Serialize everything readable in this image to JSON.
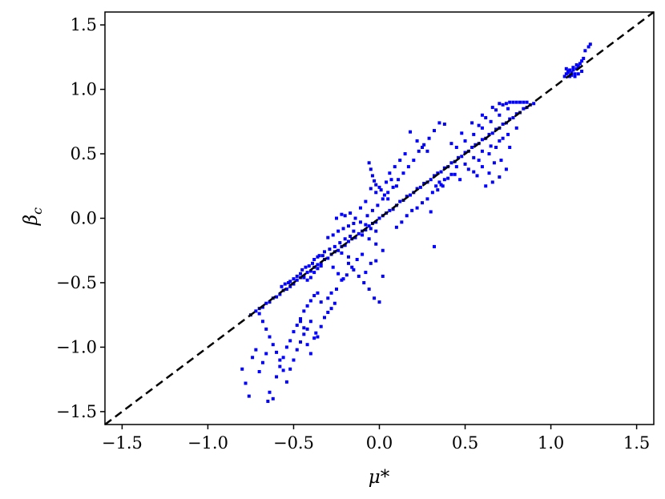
{
  "chart_data": {
    "type": "scatter",
    "title": "",
    "xlabel": "μ*",
    "ylabel": "β_c",
    "xlim": [
      -1.6,
      1.6
    ],
    "ylim": [
      -1.6,
      1.6
    ],
    "xticks": [
      "−1.5",
      "−1.0",
      "−0.5",
      "0.0",
      "0.5",
      "1.0",
      "1.5"
    ],
    "yticks": [
      "−1.5",
      "−1.0",
      "−0.5",
      "0.0",
      "0.5",
      "1.0",
      "1.5"
    ],
    "grid": false,
    "legend": "none",
    "point_color": "#0000ff",
    "reference_line": {
      "style": "dashed",
      "color": "#000000",
      "from": [
        -1.6,
        -1.6
      ],
      "to": [
        1.6,
        1.6
      ]
    },
    "points": [
      [
        -0.75,
        -0.75
      ],
      [
        -0.72,
        -0.72
      ],
      [
        -0.7,
        -0.7
      ],
      [
        -0.68,
        -0.69
      ],
      [
        -0.66,
        -0.66
      ],
      [
        -0.64,
        -0.65
      ],
      [
        -0.62,
        -0.62
      ],
      [
        -0.6,
        -0.61
      ],
      [
        -0.58,
        -0.59
      ],
      [
        -0.56,
        -0.56
      ],
      [
        -0.54,
        -0.55
      ],
      [
        -0.52,
        -0.53
      ],
      [
        -0.5,
        -0.51
      ],
      [
        -0.48,
        -0.48
      ],
      [
        -0.46,
        -0.46
      ],
      [
        -0.44,
        -0.45
      ],
      [
        -0.42,
        -0.42
      ],
      [
        -0.4,
        -0.41
      ],
      [
        -0.38,
        -0.38
      ],
      [
        -0.36,
        -0.36
      ],
      [
        -0.34,
        -0.35
      ],
      [
        -0.32,
        -0.32
      ],
      [
        -0.3,
        -0.31
      ],
      [
        -0.28,
        -0.28
      ],
      [
        -0.26,
        -0.26
      ],
      [
        -0.24,
        -0.25
      ],
      [
        -0.22,
        -0.22
      ],
      [
        -0.2,
        -0.21
      ],
      [
        -0.18,
        -0.18
      ],
      [
        -0.16,
        -0.16
      ],
      [
        -0.14,
        -0.15
      ],
      [
        -0.12,
        -0.12
      ],
      [
        -0.1,
        -0.1
      ],
      [
        -0.08,
        -0.09
      ],
      [
        -0.06,
        -0.06
      ],
      [
        -0.04,
        -0.04
      ],
      [
        -0.02,
        -0.03
      ],
      [
        0.0,
        0.0
      ],
      [
        0.02,
        0.02
      ],
      [
        0.04,
        0.04
      ],
      [
        -0.52,
        -0.49
      ],
      [
        -0.5,
        -0.47
      ],
      [
        -0.48,
        -0.45
      ],
      [
        -0.46,
        -0.43
      ],
      [
        -0.44,
        -0.46
      ],
      [
        -0.42,
        -0.48
      ],
      [
        -0.4,
        -0.46
      ],
      [
        -0.38,
        -0.42
      ],
      [
        -0.36,
        -0.39
      ],
      [
        -0.34,
        -0.37
      ],
      [
        -0.57,
        -0.53
      ],
      [
        -0.55,
        -0.51
      ],
      [
        -0.53,
        -0.5
      ],
      [
        -0.45,
        -0.4
      ],
      [
        -0.43,
        -0.38
      ],
      [
        -0.41,
        -0.37
      ],
      [
        0.06,
        0.06
      ],
      [
        0.08,
        0.07
      ],
      [
        0.1,
        0.1
      ],
      [
        0.12,
        0.13
      ],
      [
        0.14,
        0.14
      ],
      [
        0.16,
        0.17
      ],
      [
        0.18,
        0.18
      ],
      [
        0.2,
        0.2
      ],
      [
        0.22,
        0.23
      ],
      [
        0.24,
        0.24
      ],
      [
        0.26,
        0.27
      ],
      [
        0.28,
        0.28
      ],
      [
        0.3,
        0.3
      ],
      [
        0.32,
        0.33
      ],
      [
        0.34,
        0.35
      ],
      [
        0.36,
        0.36
      ],
      [
        0.38,
        0.39
      ],
      [
        0.4,
        0.4
      ],
      [
        0.42,
        0.43
      ],
      [
        0.44,
        0.44
      ],
      [
        0.46,
        0.47
      ],
      [
        0.48,
        0.48
      ],
      [
        0.5,
        0.51
      ],
      [
        0.52,
        0.52
      ],
      [
        0.54,
        0.55
      ],
      [
        0.56,
        0.57
      ],
      [
        0.58,
        0.58
      ],
      [
        0.6,
        0.61
      ],
      [
        0.62,
        0.62
      ],
      [
        0.64,
        0.65
      ],
      [
        0.66,
        0.66
      ],
      [
        0.68,
        0.69
      ],
      [
        0.7,
        0.7
      ],
      [
        0.72,
        0.73
      ],
      [
        0.74,
        0.74
      ],
      [
        0.76,
        0.77
      ],
      [
        0.78,
        0.78
      ],
      [
        0.8,
        0.81
      ],
      [
        0.82,
        0.82
      ],
      [
        0.84,
        0.85
      ],
      [
        0.86,
        0.86
      ],
      [
        0.88,
        0.88
      ],
      [
        0.9,
        0.89
      ],
      [
        0.45,
        0.55
      ],
      [
        0.5,
        0.6
      ],
      [
        0.55,
        0.65
      ],
      [
        0.6,
        0.7
      ],
      [
        0.65,
        0.75
      ],
      [
        0.7,
        0.8
      ],
      [
        0.75,
        0.85
      ],
      [
        0.58,
        0.72
      ],
      [
        0.62,
        0.78
      ],
      [
        0.68,
        0.84
      ],
      [
        0.72,
        0.88
      ],
      [
        0.66,
        0.86
      ],
      [
        0.6,
        0.8
      ],
      [
        0.54,
        0.74
      ],
      [
        0.48,
        0.66
      ],
      [
        0.42,
        0.58
      ],
      [
        0.78,
        0.9
      ],
      [
        0.8,
        0.9
      ],
      [
        0.82,
        0.9
      ],
      [
        0.84,
        0.9
      ],
      [
        0.86,
        0.9
      ],
      [
        0.76,
        0.9
      ],
      [
        0.74,
        0.89
      ],
      [
        0.7,
        0.89
      ],
      [
        0.45,
        0.4
      ],
      [
        0.5,
        0.42
      ],
      [
        0.55,
        0.47
      ],
      [
        0.6,
        0.52
      ],
      [
        0.65,
        0.56
      ],
      [
        0.7,
        0.6
      ],
      [
        0.75,
        0.65
      ],
      [
        0.8,
        0.7
      ],
      [
        0.52,
        0.38
      ],
      [
        0.58,
        0.45
      ],
      [
        0.64,
        0.5
      ],
      [
        0.68,
        0.55
      ],
      [
        0.72,
        0.62
      ],
      [
        0.35,
        0.28
      ],
      [
        0.38,
        0.3
      ],
      [
        0.42,
        0.34
      ],
      [
        0.74,
        0.38
      ],
      [
        0.7,
        0.32
      ],
      [
        0.66,
        0.28
      ],
      [
        0.62,
        0.25
      ],
      [
        0.67,
        0.43
      ],
      [
        0.64,
        0.35
      ],
      [
        0.71,
        0.45
      ],
      [
        0.76,
        0.55
      ],
      [
        0.57,
        0.33
      ],
      [
        0.55,
        0.36
      ],
      [
        0.6,
        0.4
      ],
      [
        0.47,
        0.3
      ],
      [
        0.44,
        0.34
      ],
      [
        0.4,
        0.31
      ],
      [
        0.36,
        0.26
      ],
      [
        0.33,
        0.25
      ],
      [
        0.38,
        0.73
      ],
      [
        0.35,
        0.74
      ],
      [
        0.32,
        0.68
      ],
      [
        0.29,
        0.62
      ],
      [
        0.26,
        0.57
      ],
      [
        0.23,
        0.52
      ],
      [
        0.2,
        0.45
      ],
      [
        0.17,
        0.4
      ],
      [
        0.14,
        0.35
      ],
      [
        0.11,
        0.3
      ],
      [
        0.08,
        0.24
      ],
      [
        0.05,
        0.2
      ],
      [
        0.02,
        0.15
      ],
      [
        -0.01,
        0.1
      ],
      [
        -0.04,
        0.06
      ],
      [
        -0.07,
        0.02
      ],
      [
        0.18,
        0.67
      ],
      [
        0.22,
        0.6
      ],
      [
        0.25,
        0.55
      ],
      [
        0.28,
        0.52
      ],
      [
        0.15,
        0.5
      ],
      [
        0.12,
        0.45
      ],
      [
        0.09,
        0.4
      ],
      [
        0.06,
        0.35
      ],
      [
        -0.05,
        0.23
      ],
      [
        -0.02,
        0.2
      ],
      [
        0.01,
        0.22
      ],
      [
        0.04,
        0.28
      ],
      [
        0.07,
        0.3
      ],
      [
        0.1,
        0.25
      ],
      [
        -0.08,
        0.13
      ],
      [
        -0.11,
        0.08
      ],
      [
        -0.06,
        0.43
      ],
      [
        -0.05,
        0.38
      ],
      [
        -0.04,
        0.33
      ],
      [
        -0.03,
        0.29
      ],
      [
        -0.02,
        0.26
      ],
      [
        0.0,
        0.24
      ],
      [
        0.03,
        0.18
      ],
      [
        0.05,
        0.15
      ],
      [
        -0.2,
        0.02
      ],
      [
        -0.17,
        0.04
      ],
      [
        -0.14,
        0.0
      ],
      [
        -0.11,
        -0.03
      ],
      [
        -0.08,
        -0.05
      ],
      [
        -0.05,
        -0.08
      ],
      [
        -0.02,
        -0.1
      ],
      [
        -0.15,
        -0.1
      ],
      [
        -0.1,
        -0.13
      ],
      [
        -0.06,
        -0.16
      ],
      [
        -0.02,
        -0.2
      ],
      [
        0.02,
        -0.25
      ],
      [
        0.1,
        -0.07
      ],
      [
        0.13,
        -0.03
      ],
      [
        0.16,
        0.02
      ],
      [
        0.19,
        0.06
      ],
      [
        0.22,
        0.08
      ],
      [
        0.25,
        0.12
      ],
      [
        0.28,
        0.15
      ],
      [
        0.31,
        0.2
      ],
      [
        0.34,
        0.22
      ],
      [
        0.37,
        0.25
      ],
      [
        0.3,
        0.05
      ],
      [
        0.32,
        -0.22
      ],
      [
        -0.38,
        -0.32
      ],
      [
        -0.35,
        -0.29
      ],
      [
        -0.32,
        -0.26
      ],
      [
        -0.29,
        -0.24
      ],
      [
        -0.26,
        -0.22
      ],
      [
        -0.23,
        -0.19
      ],
      [
        -0.2,
        -0.16
      ],
      [
        -0.17,
        -0.14
      ],
      [
        -0.3,
        -0.15
      ],
      [
        -0.27,
        -0.13
      ],
      [
        -0.24,
        -0.1
      ],
      [
        -0.21,
        -0.08
      ],
      [
        -0.18,
        -0.06
      ],
      [
        -0.15,
        -0.04
      ],
      [
        -0.25,
        0.0
      ],
      [
        -0.22,
        0.03
      ],
      [
        -0.18,
        -0.35
      ],
      [
        -0.15,
        -0.4
      ],
      [
        -0.12,
        -0.45
      ],
      [
        -0.09,
        -0.5
      ],
      [
        -0.06,
        -0.55
      ],
      [
        -0.03,
        -0.62
      ],
      [
        0.0,
        -0.65
      ],
      [
        -0.05,
        -0.35
      ],
      [
        -0.02,
        -0.33
      ],
      [
        -0.08,
        -0.42
      ],
      [
        0.02,
        -0.45
      ],
      [
        -0.1,
        -0.28
      ],
      [
        -0.13,
        -0.32
      ],
      [
        -0.16,
        -0.38
      ],
      [
        -0.19,
        -0.44
      ],
      [
        -0.22,
        -0.48
      ],
      [
        -0.8,
        -1.17
      ],
      [
        -0.78,
        -1.28
      ],
      [
        -0.76,
        -1.38
      ],
      [
        -0.74,
        -1.08
      ],
      [
        -0.72,
        -1.02
      ],
      [
        -0.7,
        -1.19
      ],
      [
        -0.68,
        -1.12
      ],
      [
        -0.66,
        -1.05
      ],
      [
        -0.64,
        -1.35
      ],
      [
        -0.62,
        -1.4
      ],
      [
        -0.65,
        -1.42
      ],
      [
        -0.6,
        -1.23
      ],
      [
        -0.58,
        -1.15
      ],
      [
        -0.56,
        -1.08
      ],
      [
        -0.54,
        -1.0
      ],
      [
        -0.52,
        -0.95
      ],
      [
        -0.5,
        -0.88
      ],
      [
        -0.48,
        -0.83
      ],
      [
        -0.46,
        -0.78
      ],
      [
        -0.44,
        -0.72
      ],
      [
        -0.42,
        -0.68
      ],
      [
        -0.4,
        -0.64
      ],
      [
        -0.38,
        -0.6
      ],
      [
        -0.36,
        -0.58
      ],
      [
        -0.7,
        -0.74
      ],
      [
        -0.68,
        -0.8
      ],
      [
        -0.66,
        -0.86
      ],
      [
        -0.64,
        -0.92
      ],
      [
        -0.62,
        -0.98
      ],
      [
        -0.6,
        -1.04
      ],
      [
        -0.58,
        -1.1
      ],
      [
        -0.56,
        -1.18
      ],
      [
        -0.54,
        -1.27
      ],
      [
        -0.52,
        -1.17
      ],
      [
        -0.5,
        -1.1
      ],
      [
        -0.48,
        -1.02
      ],
      [
        -0.46,
        -0.96
      ],
      [
        -0.44,
        -0.9
      ],
      [
        -0.42,
        -0.86
      ],
      [
        -0.4,
        -0.8
      ],
      [
        -0.38,
        -0.93
      ],
      [
        -0.36,
        -0.92
      ],
      [
        -0.37,
        -0.89
      ],
      [
        -0.34,
        -0.84
      ],
      [
        -0.32,
        -0.77
      ],
      [
        -0.3,
        -0.73
      ],
      [
        -0.28,
        -0.7
      ],
      [
        -0.26,
        -0.66
      ],
      [
        -0.42,
        -0.98
      ],
      [
        -0.4,
        -1.05
      ],
      [
        -0.44,
        -0.85
      ],
      [
        -0.46,
        -0.8
      ],
      [
        -0.34,
        -0.65
      ],
      [
        -0.3,
        -0.62
      ],
      [
        -0.28,
        -0.58
      ],
      [
        -0.25,
        -0.55
      ],
      [
        1.08,
        1.1
      ],
      [
        1.09,
        1.12
      ],
      [
        1.1,
        1.14
      ],
      [
        1.11,
        1.1
      ],
      [
        1.12,
        1.13
      ],
      [
        1.13,
        1.15
      ],
      [
        1.14,
        1.12
      ],
      [
        1.15,
        1.16
      ],
      [
        1.16,
        1.18
      ],
      [
        1.17,
        1.2
      ],
      [
        1.18,
        1.22
      ],
      [
        1.19,
        1.24
      ],
      [
        1.2,
        1.3
      ],
      [
        1.22,
        1.33
      ],
      [
        1.23,
        1.35
      ],
      [
        1.12,
        1.11
      ],
      [
        1.14,
        1.1
      ],
      [
        1.16,
        1.12
      ],
      [
        1.18,
        1.14
      ],
      [
        1.1,
        1.13
      ],
      [
        1.13,
        1.17
      ],
      [
        1.15,
        1.19
      ],
      [
        1.11,
        1.15
      ],
      [
        1.09,
        1.16
      ],
      [
        -0.27,
        -0.38
      ],
      [
        -0.24,
        -0.43
      ],
      [
        -0.21,
        -0.47
      ],
      [
        -0.18,
        -0.3
      ],
      [
        -0.22,
        -0.27
      ],
      [
        -0.33,
        -0.29
      ],
      [
        -0.36,
        -0.3
      ],
      [
        -0.39,
        -0.35
      ]
    ]
  }
}
